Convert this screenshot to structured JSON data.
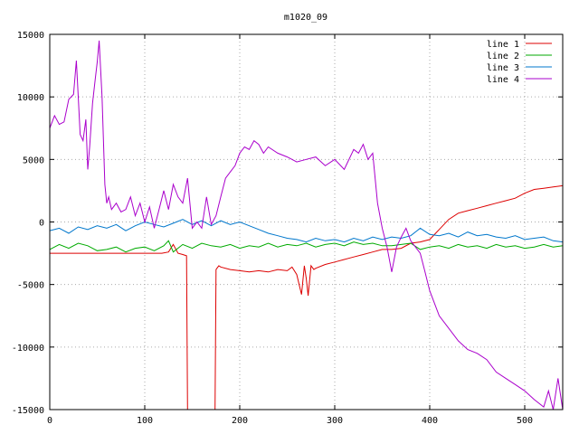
{
  "chart_data": {
    "type": "line",
    "title": "m1020_09",
    "xlabel": "",
    "ylabel": "",
    "xlim": [
      0,
      540
    ],
    "ylim": [
      -15000,
      15000
    ],
    "xticks": [
      0,
      100,
      200,
      300,
      400,
      500
    ],
    "yticks": [
      -15000,
      -10000,
      -5000,
      0,
      5000,
      10000,
      15000
    ],
    "grid": true,
    "legend_position": "top-right",
    "series": [
      {
        "name": "line 1",
        "color": "#dd0000",
        "x": [
          0,
          20,
          40,
          60,
          80,
          100,
          110,
          118,
          125,
          130,
          135,
          140,
          144,
          145,
          146,
          147,
          148,
          150,
          160,
          170,
          172,
          173,
          174,
          175,
          176,
          178,
          180,
          190,
          200,
          210,
          220,
          230,
          240,
          250,
          255,
          260,
          265,
          268,
          270,
          272,
          275,
          278,
          280,
          290,
          300,
          310,
          320,
          330,
          340,
          350,
          360,
          370,
          380,
          390,
          400,
          410,
          420,
          430,
          440,
          450,
          460,
          470,
          480,
          490,
          500,
          510,
          520,
          530,
          540
        ],
        "y": [
          -2500,
          -2500,
          -2500,
          -2500,
          -2500,
          -2500,
          -2500,
          -2500,
          -2400,
          -1800,
          -2500,
          -2600,
          -2700,
          -15000,
          -15000,
          -15000,
          -15000,
          -15000,
          -15000,
          -15000,
          -15000,
          -15000,
          -15000,
          -3800,
          -3700,
          -3500,
          -3600,
          -3800,
          -3900,
          -4000,
          -3900,
          -4000,
          -3800,
          -3900,
          -3600,
          -4200,
          -5800,
          -3500,
          -4500,
          -5900,
          -3500,
          -3800,
          -3700,
          -3400,
          -3200,
          -3000,
          -2800,
          -2600,
          -2400,
          -2200,
          -2200,
          -2100,
          -1700,
          -1600,
          -1400,
          -600,
          200,
          700,
          900,
          1100,
          1300,
          1500,
          1700,
          1900,
          2300,
          2600,
          2700,
          2800,
          2900
        ]
      },
      {
        "name": "line 2",
        "color": "#00aa00",
        "x": [
          0,
          10,
          20,
          30,
          40,
          50,
          60,
          70,
          80,
          90,
          100,
          110,
          120,
          125,
          130,
          140,
          150,
          160,
          170,
          180,
          190,
          200,
          210,
          220,
          230,
          240,
          250,
          260,
          270,
          280,
          290,
          300,
          310,
          320,
          330,
          340,
          350,
          360,
          370,
          380,
          390,
          400,
          410,
          420,
          430,
          440,
          450,
          460,
          470,
          480,
          490,
          500,
          510,
          520,
          530,
          540
        ],
        "y": [
          -2200,
          -1800,
          -2100,
          -1700,
          -1900,
          -2300,
          -2200,
          -2000,
          -2400,
          -2100,
          -2000,
          -2300,
          -1900,
          -1500,
          -2400,
          -1800,
          -2100,
          -1700,
          -1900,
          -2000,
          -1800,
          -2100,
          -1900,
          -2000,
          -1700,
          -2000,
          -1800,
          -1900,
          -1700,
          -2000,
          -1800,
          -1700,
          -1900,
          -1600,
          -1800,
          -1700,
          -1900,
          -1900,
          -1800,
          -1700,
          -2200,
          -2000,
          -1900,
          -2100,
          -1800,
          -2000,
          -1900,
          -2100,
          -1800,
          -2000,
          -1900,
          -2100,
          -2000,
          -1800,
          -2000,
          -1900
        ]
      },
      {
        "name": "line 3",
        "color": "#0077cc",
        "x": [
          0,
          10,
          20,
          30,
          40,
          50,
          60,
          70,
          80,
          90,
          100,
          110,
          120,
          130,
          140,
          150,
          160,
          170,
          180,
          190,
          200,
          210,
          220,
          230,
          240,
          250,
          260,
          270,
          280,
          290,
          300,
          310,
          320,
          330,
          340,
          350,
          360,
          370,
          380,
          390,
          400,
          410,
          420,
          430,
          440,
          450,
          460,
          470,
          480,
          490,
          500,
          510,
          520,
          530,
          540
        ],
        "y": [
          -700,
          -500,
          -900,
          -400,
          -600,
          -300,
          -500,
          -200,
          -700,
          -300,
          0,
          -200,
          -400,
          -100,
          200,
          -200,
          100,
          -300,
          100,
          -200,
          0,
          -300,
          -600,
          -900,
          -1100,
          -1300,
          -1400,
          -1600,
          -1300,
          -1500,
          -1400,
          -1600,
          -1300,
          -1500,
          -1200,
          -1400,
          -1200,
          -1300,
          -1100,
          -500,
          -1000,
          -1100,
          -900,
          -1200,
          -800,
          -1100,
          -1000,
          -1200,
          -1300,
          -1100,
          -1400,
          -1300,
          -1200,
          -1500,
          -1600
        ]
      },
      {
        "name": "line 4",
        "color": "#aa00cc",
        "x": [
          0,
          5,
          10,
          15,
          20,
          25,
          28,
          30,
          32,
          35,
          38,
          40,
          42,
          45,
          48,
          50,
          52,
          55,
          58,
          60,
          62,
          65,
          70,
          75,
          80,
          85,
          90,
          95,
          100,
          105,
          110,
          115,
          120,
          125,
          130,
          135,
          140,
          145,
          150,
          155,
          160,
          165,
          170,
          175,
          180,
          185,
          190,
          195,
          200,
          205,
          210,
          215,
          220,
          225,
          230,
          240,
          250,
          260,
          270,
          280,
          290,
          300,
          310,
          320,
          325,
          330,
          335,
          340,
          345,
          350,
          355,
          360,
          365,
          370,
          375,
          380,
          385,
          390,
          395,
          400,
          410,
          420,
          430,
          440,
          450,
          460,
          470,
          480,
          490,
          500,
          510,
          520,
          525,
          530,
          535,
          540
        ],
        "y": [
          7500,
          8500,
          7800,
          8000,
          9800,
          10200,
          12900,
          10000,
          7000,
          6500,
          8200,
          4200,
          6000,
          9500,
          11500,
          12800,
          14500,
          10000,
          3000,
          1500,
          2000,
          1000,
          1500,
          800,
          1000,
          2000,
          500,
          1500,
          0,
          1200,
          -500,
          1000,
          2500,
          1000,
          3000,
          2000,
          1500,
          3500,
          -500,
          0,
          -500,
          2000,
          -200,
          500,
          2000,
          3500,
          4000,
          4500,
          5500,
          6000,
          5800,
          6500,
          6200,
          5500,
          6000,
          5500,
          5200,
          4800,
          5000,
          5200,
          4500,
          5000,
          4200,
          5800,
          5500,
          6200,
          5000,
          5500,
          1500,
          -500,
          -2000,
          -4000,
          -2000,
          -1200,
          -500,
          -1500,
          -2000,
          -2500,
          -4000,
          -5500,
          -7500,
          -8500,
          -9500,
          -10200,
          -10500,
          -11000,
          -12000,
          -12500,
          -13000,
          -13500,
          -14200,
          -14800,
          -13500,
          -15000,
          -12500,
          -15000
        ]
      }
    ]
  }
}
